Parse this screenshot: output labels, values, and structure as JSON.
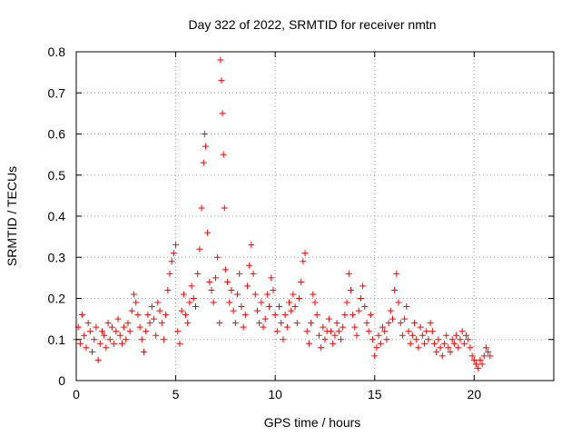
{
  "chart_data": {
    "type": "scatter",
    "title": "Day 322 of 2022, SRMTID for receiver nmtn",
    "xlabel": "GPS time / hours",
    "ylabel": "SRMTID / TECUs",
    "xlim": [
      0,
      24
    ],
    "ylim": [
      0,
      0.8
    ],
    "xticks": [
      0,
      5,
      10,
      15,
      20
    ],
    "xtick_labels": [
      "0",
      "5",
      "10",
      "15",
      "20"
    ],
    "yticks": [
      0,
      0.1,
      0.2,
      0.3,
      0.4,
      0.5,
      0.6,
      0.7,
      0.8
    ],
    "ytick_labels": [
      "0",
      "0.1",
      "0.2",
      "0.3",
      "0.4",
      "0.5",
      "0.6",
      "0.7",
      "0.8"
    ],
    "grid": true,
    "marker": "+",
    "series": [
      {
        "name": "SRMTID",
        "color": "#ff0000",
        "points": [
          [
            0.0,
            0.1
          ],
          [
            0.1,
            0.13
          ],
          [
            0.2,
            0.09
          ],
          [
            0.3,
            0.16
          ],
          [
            0.4,
            0.11
          ],
          [
            0.5,
            0.08
          ],
          [
            0.6,
            0.14
          ],
          [
            0.7,
            0.12
          ],
          [
            0.8,
            0.07
          ],
          [
            0.9,
            0.1
          ],
          [
            1.0,
            0.13
          ],
          [
            1.1,
            0.05
          ],
          [
            1.2,
            0.09
          ],
          [
            1.3,
            0.12
          ],
          [
            1.4,
            0.11
          ],
          [
            1.5,
            0.08
          ],
          [
            1.6,
            0.14
          ],
          [
            1.7,
            0.1
          ],
          [
            1.8,
            0.13
          ],
          [
            1.9,
            0.09
          ],
          [
            2.0,
            0.12
          ],
          [
            2.1,
            0.15
          ],
          [
            2.2,
            0.11
          ],
          [
            2.3,
            0.09
          ],
          [
            2.4,
            0.13
          ],
          [
            2.5,
            0.1
          ],
          [
            2.6,
            0.14
          ],
          [
            2.7,
            0.12
          ],
          [
            2.8,
            0.17
          ],
          [
            2.9,
            0.21
          ],
          [
            3.0,
            0.19
          ],
          [
            3.1,
            0.16
          ],
          [
            3.2,
            0.13
          ],
          [
            3.3,
            0.1
          ],
          [
            3.4,
            0.07
          ],
          [
            3.5,
            0.12
          ],
          [
            3.6,
            0.16
          ],
          [
            3.7,
            0.14
          ],
          [
            3.8,
            0.18
          ],
          [
            3.9,
            0.15
          ],
          [
            4.0,
            0.11
          ],
          [
            4.1,
            0.19
          ],
          [
            4.2,
            0.17
          ],
          [
            4.3,
            0.14
          ],
          [
            4.4,
            0.1
          ],
          [
            4.5,
            0.16
          ],
          [
            4.6,
            0.22
          ],
          [
            4.7,
            0.26
          ],
          [
            4.8,
            0.29
          ],
          [
            4.9,
            0.31
          ],
          [
            5.0,
            0.33
          ],
          [
            5.1,
            0.12
          ],
          [
            5.2,
            0.09
          ],
          [
            5.3,
            0.17
          ],
          [
            5.4,
            0.21
          ],
          [
            5.5,
            0.16
          ],
          [
            5.6,
            0.14
          ],
          [
            5.7,
            0.19
          ],
          [
            5.8,
            0.23
          ],
          [
            5.9,
            0.2
          ],
          [
            6.0,
            0.18
          ],
          [
            6.1,
            0.26
          ],
          [
            6.2,
            0.32
          ],
          [
            6.3,
            0.42
          ],
          [
            6.4,
            0.53
          ],
          [
            6.45,
            0.6
          ],
          [
            6.5,
            0.57
          ],
          [
            6.6,
            0.36
          ],
          [
            6.7,
            0.24
          ],
          [
            6.8,
            0.22
          ],
          [
            6.9,
            0.19
          ],
          [
            7.0,
            0.25
          ],
          [
            7.1,
            0.3
          ],
          [
            7.2,
            0.14
          ],
          [
            7.25,
            0.78
          ],
          [
            7.3,
            0.73
          ],
          [
            7.35,
            0.65
          ],
          [
            7.4,
            0.55
          ],
          [
            7.45,
            0.42
          ],
          [
            7.5,
            0.27
          ],
          [
            7.6,
            0.24
          ],
          [
            7.7,
            0.19
          ],
          [
            7.8,
            0.22
          ],
          [
            7.9,
            0.17
          ],
          [
            8.0,
            0.14
          ],
          [
            8.1,
            0.21
          ],
          [
            8.2,
            0.26
          ],
          [
            8.3,
            0.18
          ],
          [
            8.4,
            0.13
          ],
          [
            8.5,
            0.16
          ],
          [
            8.6,
            0.23
          ],
          [
            8.7,
            0.28
          ],
          [
            8.8,
            0.33
          ],
          [
            8.9,
            0.26
          ],
          [
            9.0,
            0.21
          ],
          [
            9.1,
            0.17
          ],
          [
            9.2,
            0.14
          ],
          [
            9.3,
            0.19
          ],
          [
            9.4,
            0.13
          ],
          [
            9.5,
            0.15
          ],
          [
            9.6,
            0.21
          ],
          [
            9.7,
            0.18
          ],
          [
            9.8,
            0.25
          ],
          [
            9.9,
            0.22
          ],
          [
            10.0,
            0.16
          ],
          [
            10.1,
            0.12
          ],
          [
            10.2,
            0.18
          ],
          [
            10.3,
            0.14
          ],
          [
            10.4,
            0.1
          ],
          [
            10.5,
            0.16
          ],
          [
            10.6,
            0.13
          ],
          [
            10.7,
            0.19
          ],
          [
            10.8,
            0.17
          ],
          [
            10.9,
            0.21
          ],
          [
            11.0,
            0.18
          ],
          [
            11.1,
            0.14
          ],
          [
            11.2,
            0.2
          ],
          [
            11.3,
            0.24
          ],
          [
            11.4,
            0.29
          ],
          [
            11.5,
            0.31
          ],
          [
            11.6,
            0.12
          ],
          [
            11.7,
            0.09
          ],
          [
            11.8,
            0.14
          ],
          [
            11.9,
            0.21
          ],
          [
            12.0,
            0.19
          ],
          [
            12.1,
            0.16
          ],
          [
            12.2,
            0.11
          ],
          [
            12.3,
            0.08
          ],
          [
            12.4,
            0.13
          ],
          [
            12.5,
            0.1
          ],
          [
            12.6,
            0.12
          ],
          [
            12.7,
            0.15
          ],
          [
            12.8,
            0.12
          ],
          [
            12.9,
            0.09
          ],
          [
            13.0,
            0.11
          ],
          [
            13.1,
            0.14
          ],
          [
            13.2,
            0.12
          ],
          [
            13.3,
            0.1
          ],
          [
            13.4,
            0.13
          ],
          [
            13.5,
            0.16
          ],
          [
            13.6,
            0.19
          ],
          [
            13.7,
            0.26
          ],
          [
            13.8,
            0.22
          ],
          [
            13.9,
            0.16
          ],
          [
            14.0,
            0.13
          ],
          [
            14.1,
            0.11
          ],
          [
            14.2,
            0.17
          ],
          [
            14.3,
            0.2
          ],
          [
            14.4,
            0.23
          ],
          [
            14.5,
            0.18
          ],
          [
            14.6,
            0.14
          ],
          [
            14.7,
            0.12
          ],
          [
            14.8,
            0.16
          ],
          [
            14.9,
            0.1
          ],
          [
            15.0,
            0.06
          ],
          [
            15.1,
            0.08
          ],
          [
            15.2,
            0.11
          ],
          [
            15.3,
            0.09
          ],
          [
            15.4,
            0.13
          ],
          [
            15.5,
            0.12
          ],
          [
            15.6,
            0.1
          ],
          [
            15.7,
            0.14
          ],
          [
            15.8,
            0.17
          ],
          [
            15.9,
            0.15
          ],
          [
            16.0,
            0.22
          ],
          [
            16.1,
            0.26
          ],
          [
            16.2,
            0.19
          ],
          [
            16.3,
            0.14
          ],
          [
            16.4,
            0.11
          ],
          [
            16.5,
            0.15
          ],
          [
            16.6,
            0.18
          ],
          [
            16.7,
            0.12
          ],
          [
            16.8,
            0.09
          ],
          [
            16.9,
            0.11
          ],
          [
            17.0,
            0.14
          ],
          [
            17.1,
            0.1
          ],
          [
            17.2,
            0.08
          ],
          [
            17.3,
            0.13
          ],
          [
            17.4,
            0.11
          ],
          [
            17.5,
            0.09
          ],
          [
            17.6,
            0.12
          ],
          [
            17.7,
            0.1
          ],
          [
            17.8,
            0.14
          ],
          [
            17.9,
            0.12
          ],
          [
            18.0,
            0.09
          ],
          [
            18.1,
            0.07
          ],
          [
            18.2,
            0.1
          ],
          [
            18.3,
            0.08
          ],
          [
            18.4,
            0.06
          ],
          [
            18.5,
            0.09
          ],
          [
            18.6,
            0.11
          ],
          [
            18.7,
            0.08
          ],
          [
            18.8,
            0.07
          ],
          [
            18.9,
            0.1
          ],
          [
            19.0,
            0.09
          ],
          [
            19.1,
            0.11
          ],
          [
            19.2,
            0.08
          ],
          [
            19.3,
            0.1
          ],
          [
            19.4,
            0.12
          ],
          [
            19.5,
            0.09
          ],
          [
            19.6,
            0.11
          ],
          [
            19.7,
            0.1
          ],
          [
            19.8,
            0.08
          ],
          [
            19.9,
            0.06
          ],
          [
            20.0,
            0.05
          ],
          [
            20.1,
            0.04
          ],
          [
            20.2,
            0.03
          ],
          [
            20.3,
            0.05
          ],
          [
            20.4,
            0.04
          ],
          [
            20.5,
            0.06
          ],
          [
            20.6,
            0.08
          ],
          [
            20.7,
            0.07
          ],
          [
            20.8,
            0.06
          ]
        ]
      }
    ]
  }
}
